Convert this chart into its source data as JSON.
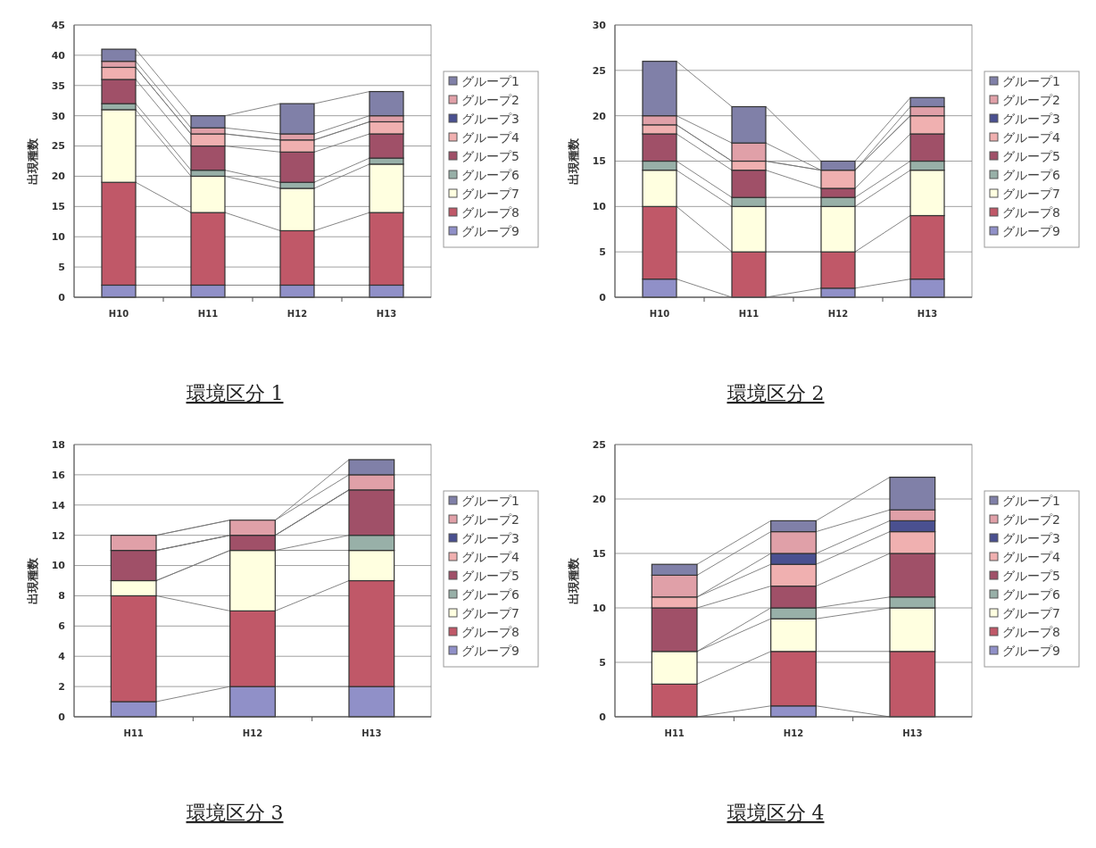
{
  "chart_data": [
    {
      "type": "bar",
      "stacked": true,
      "title": "環境区分 1",
      "ylabel": "出現種数",
      "categories": [
        "H10",
        "H11",
        "H12",
        "H13"
      ],
      "ylim": [
        0,
        45
      ],
      "yticks": [
        0,
        5,
        10,
        15,
        20,
        25,
        30,
        35,
        40,
        45
      ],
      "grid": "y",
      "legend": "right",
      "series": [
        {
          "name": "グループ9",
          "color": "#9090c8",
          "values": [
            2,
            2,
            2,
            2
          ]
        },
        {
          "name": "グループ8",
          "color": "#c05868",
          "values": [
            17,
            12,
            9,
            12
          ]
        },
        {
          "name": "グループ7",
          "color": "#ffffe0",
          "values": [
            12,
            6,
            7,
            8
          ]
        },
        {
          "name": "グループ6",
          "color": "#98b0a8",
          "values": [
            1,
            1,
            1,
            1
          ]
        },
        {
          "name": "グループ5",
          "color": "#a05068",
          "values": [
            4,
            4,
            5,
            4
          ]
        },
        {
          "name": "グループ4",
          "color": "#f0b0b0",
          "values": [
            2,
            2,
            2,
            2
          ]
        },
        {
          "name": "グループ3",
          "color": "#4a5090",
          "values": [
            0,
            0,
            0,
            0
          ]
        },
        {
          "name": "グループ2",
          "color": "#e0a0a8",
          "values": [
            1,
            1,
            1,
            1
          ]
        },
        {
          "name": "グループ1",
          "color": "#8080a8",
          "values": [
            2,
            2,
            5,
            4
          ]
        }
      ]
    },
    {
      "type": "bar",
      "stacked": true,
      "title": "環境区分 2",
      "ylabel": "出現種数",
      "categories": [
        "H10",
        "H11",
        "H12",
        "H13"
      ],
      "ylim": [
        0,
        30
      ],
      "yticks": [
        0,
        5,
        10,
        15,
        20,
        25,
        30
      ],
      "grid": "y",
      "legend": "right",
      "series": [
        {
          "name": "グループ9",
          "color": "#9090c8",
          "values": [
            2,
            0,
            1,
            2
          ]
        },
        {
          "name": "グループ8",
          "color": "#c05868",
          "values": [
            8,
            5,
            4,
            7
          ]
        },
        {
          "name": "グループ7",
          "color": "#ffffe0",
          "values": [
            4,
            5,
            5,
            5
          ]
        },
        {
          "name": "グループ6",
          "color": "#98b0a8",
          "values": [
            1,
            1,
            1,
            1
          ]
        },
        {
          "name": "グループ5",
          "color": "#a05068",
          "values": [
            3,
            3,
            1,
            3
          ]
        },
        {
          "name": "グループ4",
          "color": "#f0b0b0",
          "values": [
            1,
            1,
            2,
            2
          ]
        },
        {
          "name": "グループ3",
          "color": "#4a5090",
          "values": [
            0,
            0,
            0,
            0
          ]
        },
        {
          "name": "グループ2",
          "color": "#e0a0a8",
          "values": [
            1,
            2,
            0,
            1
          ]
        },
        {
          "name": "グループ1",
          "color": "#8080a8",
          "values": [
            6,
            4,
            1,
            1
          ]
        }
      ]
    },
    {
      "type": "bar",
      "stacked": true,
      "title": "環境区分 3",
      "ylabel": "出現種数",
      "categories": [
        "H11",
        "H12",
        "H13"
      ],
      "ylim": [
        0,
        18
      ],
      "yticks": [
        0,
        2,
        4,
        6,
        8,
        10,
        12,
        14,
        16,
        18
      ],
      "grid": "y",
      "legend": "right",
      "series": [
        {
          "name": "グループ9",
          "color": "#9090c8",
          "values": [
            1,
            2,
            2
          ]
        },
        {
          "name": "グループ8",
          "color": "#c05868",
          "values": [
            7,
            5,
            7
          ]
        },
        {
          "name": "グループ7",
          "color": "#ffffe0",
          "values": [
            1,
            4,
            2
          ]
        },
        {
          "name": "グループ6",
          "color": "#98b0a8",
          "values": [
            0,
            0,
            1
          ]
        },
        {
          "name": "グループ5",
          "color": "#a05068",
          "values": [
            2,
            1,
            3
          ]
        },
        {
          "name": "グループ4",
          "color": "#f0b0b0",
          "values": [
            0,
            0,
            0
          ]
        },
        {
          "name": "グループ3",
          "color": "#4a5090",
          "values": [
            0,
            0,
            0
          ]
        },
        {
          "name": "グループ2",
          "color": "#e0a0a8",
          "values": [
            1,
            1,
            1
          ]
        },
        {
          "name": "グループ1",
          "color": "#8080a8",
          "values": [
            0,
            0,
            1
          ]
        }
      ]
    },
    {
      "type": "bar",
      "stacked": true,
      "title": "環境区分 4",
      "ylabel": "出現種数",
      "categories": [
        "H11",
        "H12",
        "H13"
      ],
      "ylim": [
        0,
        25
      ],
      "yticks": [
        0,
        5,
        10,
        15,
        20,
        25
      ],
      "grid": "y",
      "legend": "right",
      "series": [
        {
          "name": "グループ9",
          "color": "#9090c8",
          "values": [
            0,
            1,
            0
          ]
        },
        {
          "name": "グループ8",
          "color": "#c05868",
          "values": [
            3,
            5,
            6
          ]
        },
        {
          "name": "グループ7",
          "color": "#ffffe0",
          "values": [
            3,
            3,
            4
          ]
        },
        {
          "name": "グループ6",
          "color": "#98b0a8",
          "values": [
            0,
            1,
            1
          ]
        },
        {
          "name": "グループ5",
          "color": "#a05068",
          "values": [
            4,
            2,
            4
          ]
        },
        {
          "name": "グループ4",
          "color": "#f0b0b0",
          "values": [
            1,
            2,
            2
          ]
        },
        {
          "name": "グループ3",
          "color": "#4a5090",
          "values": [
            0,
            1,
            1
          ]
        },
        {
          "name": "グループ2",
          "color": "#e0a0a8",
          "values": [
            2,
            2,
            1
          ]
        },
        {
          "name": "グループ1",
          "color": "#8080a8",
          "values": [
            1,
            1,
            3
          ]
        }
      ]
    }
  ]
}
